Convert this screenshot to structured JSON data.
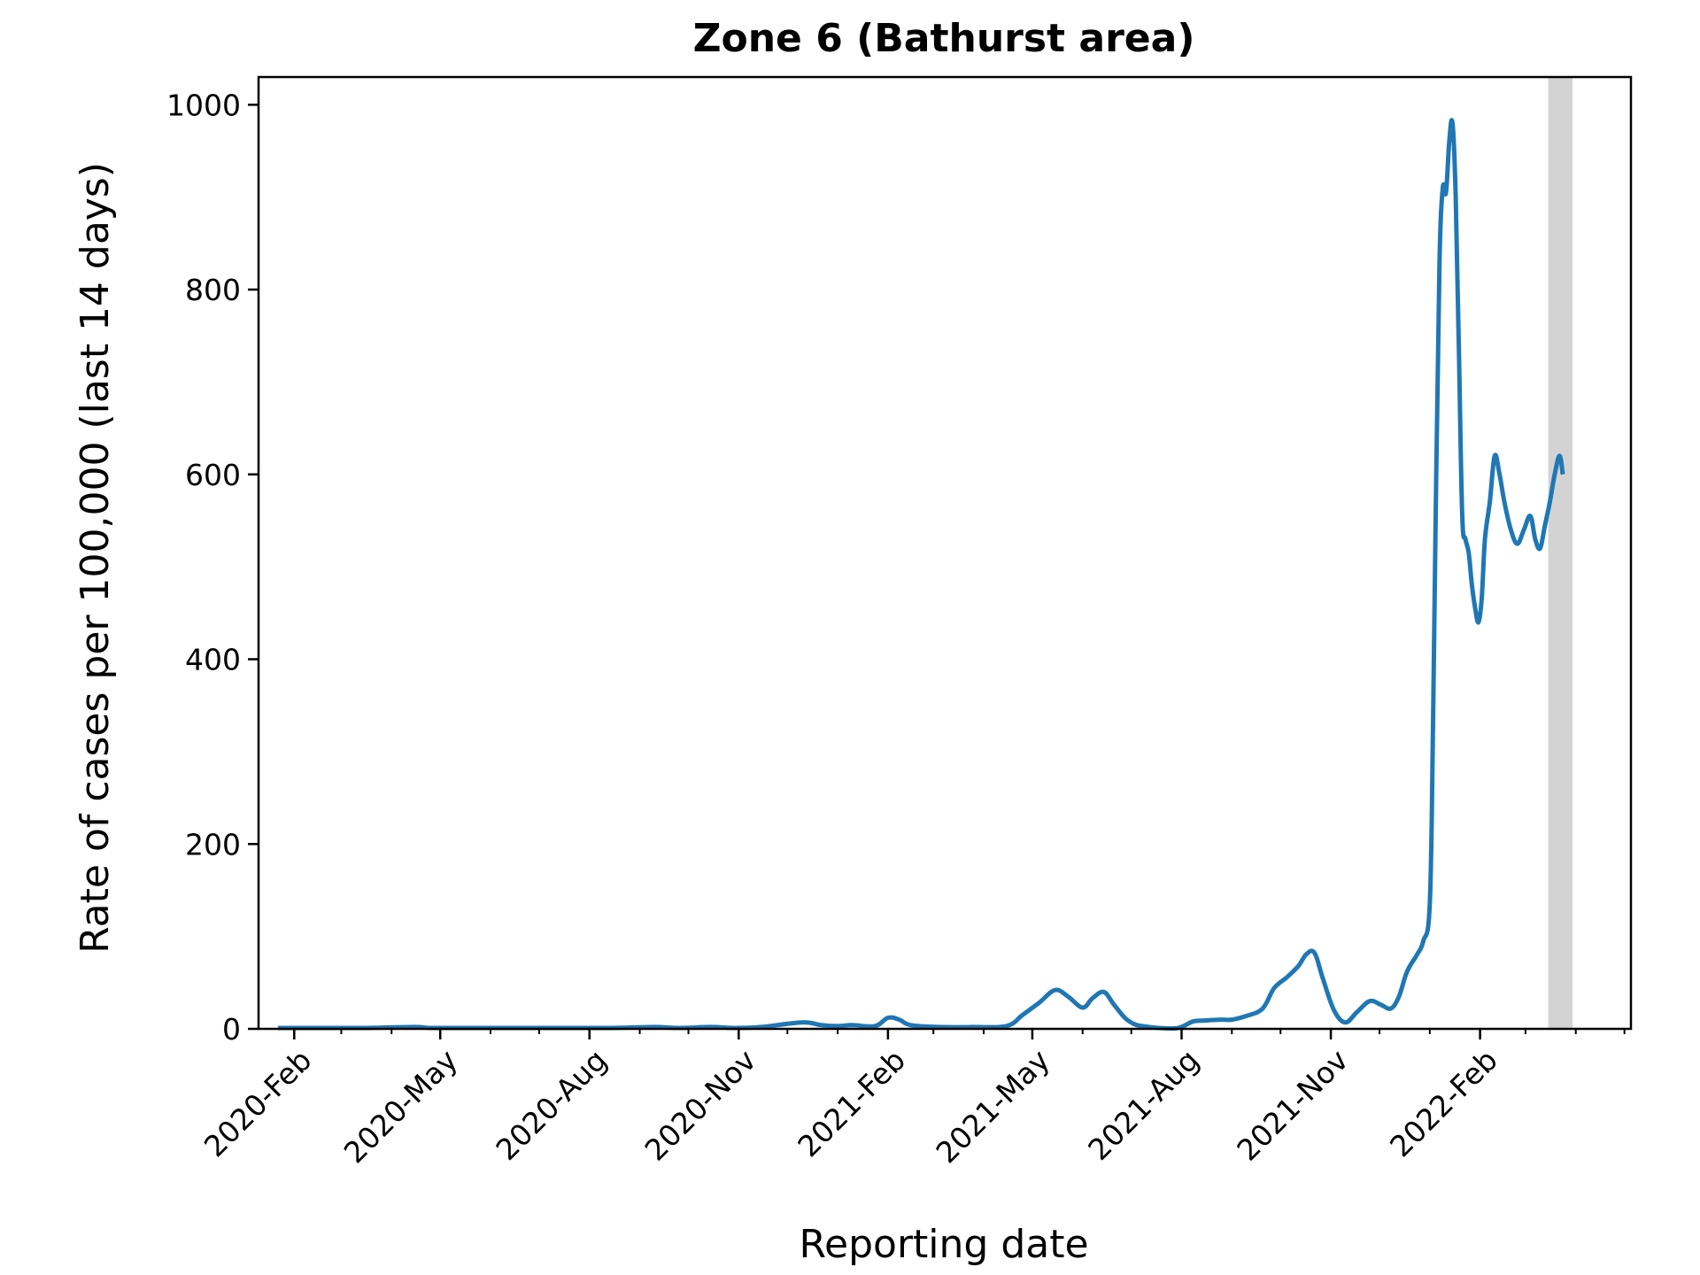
{
  "chart_data": {
    "type": "line",
    "title": "Zone 6 (Bathurst area)",
    "xlabel": "Reporting date",
    "ylabel": "Rate of cases per 100,000 (last 14 days)",
    "x_ticks": [
      "2020-Feb",
      "2020-May",
      "2020-Aug",
      "2020-Nov",
      "2021-Feb",
      "2021-May",
      "2021-Aug",
      "2021-Nov",
      "2022-Feb"
    ],
    "y_ticks": [
      0,
      200,
      400,
      600,
      800,
      1000
    ],
    "xlim": [
      "2020-01-10",
      "2022-05-05"
    ],
    "ylim": [
      0,
      1030
    ],
    "grid": false,
    "shaded_region": {
      "x_start": "2022-03-15",
      "x_end": "2022-03-30",
      "color": "#d3d3d3"
    },
    "series": [
      {
        "color": "#1f77b4",
        "x": [
          "2020-01-22",
          "2020-02-15",
          "2020-03-15",
          "2020-04-15",
          "2020-04-25",
          "2020-05-15",
          "2020-06-15",
          "2020-07-15",
          "2020-08-15",
          "2020-09-10",
          "2020-09-25",
          "2020-10-15",
          "2020-10-30",
          "2020-11-15",
          "2020-12-10",
          "2020-12-22",
          "2021-01-01",
          "2021-01-10",
          "2021-01-24",
          "2021-02-01",
          "2021-02-08",
          "2021-02-15",
          "2021-03-05",
          "2021-03-25",
          "2021-04-15",
          "2021-04-25",
          "2021-05-05",
          "2021-05-15",
          "2021-05-23",
          "2021-06-01",
          "2021-06-07",
          "2021-06-14",
          "2021-06-20",
          "2021-06-27",
          "2021-07-03",
          "2021-07-08",
          "2021-07-18",
          "2021-07-30",
          "2021-08-08",
          "2021-08-15",
          "2021-08-25",
          "2021-09-01",
          "2021-09-10",
          "2021-09-20",
          "2021-09-27",
          "2021-10-05",
          "2021-10-12",
          "2021-10-17",
          "2021-10-22",
          "2021-10-27",
          "2021-11-03",
          "2021-11-10",
          "2021-11-17",
          "2021-11-25",
          "2021-12-02",
          "2021-12-08",
          "2021-12-13",
          "2021-12-18",
          "2021-12-24",
          "2021-12-28",
          "2022-01-01",
          "2022-01-03",
          "2022-01-05",
          "2022-01-07",
          "2022-01-09",
          "2022-01-11",
          "2022-01-13",
          "2022-01-15",
          "2022-01-17",
          "2022-01-19",
          "2022-01-21",
          "2022-01-23",
          "2022-01-25",
          "2022-01-27",
          "2022-01-29",
          "2022-01-31",
          "2022-02-02",
          "2022-02-04",
          "2022-02-07",
          "2022-02-10",
          "2022-02-13",
          "2022-02-16",
          "2022-02-20",
          "2022-02-24",
          "2022-02-28",
          "2022-03-04",
          "2022-03-07",
          "2022-03-10",
          "2022-03-13",
          "2022-03-16",
          "2022-03-19",
          "2022-03-22",
          "2022-03-24",
          "2022-03-26"
        ],
        "y": [
          1,
          1,
          1,
          2,
          1,
          1,
          1,
          1,
          1,
          2,
          1,
          2,
          1,
          2,
          7,
          4,
          3,
          4,
          3,
          12,
          10,
          4,
          2,
          2,
          3,
          15,
          28,
          42,
          35,
          23,
          33,
          40,
          27,
          12,
          5,
          3,
          1,
          1,
          8,
          9,
          10,
          10,
          14,
          22,
          44,
          56,
          68,
          81,
          82,
          55,
          20,
          7,
          18,
          30,
          26,
          22,
          35,
          62,
          80,
          95,
          135,
          330,
          600,
          830,
          910,
          905,
          960,
          980,
          900,
          730,
          555,
          530,
          515,
          480,
          455,
          440,
          465,
          530,
          570,
          620,
          600,
          570,
          540,
          525,
          540,
          555,
          530,
          520,
          545,
          570,
          600,
          620,
          600,
          570
        ],
        "display_until": "2022-03-25"
      }
    ]
  }
}
